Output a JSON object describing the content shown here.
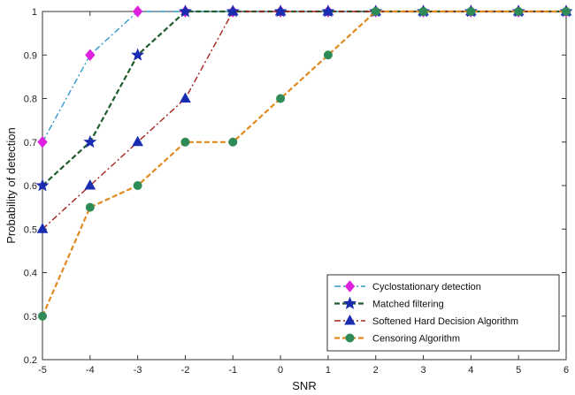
{
  "chart_data": {
    "type": "line",
    "xlabel": "SNR",
    "ylabel": "Probability of detection",
    "xlim": [
      -5,
      6
    ],
    "ylim": [
      0.2,
      1.0
    ],
    "x_ticks": [
      "-5",
      "-4",
      "-3",
      "-2",
      "-1",
      "0",
      "1",
      "2",
      "3",
      "4",
      "5",
      "6"
    ],
    "y_ticks": [
      "0.2",
      "0.3",
      "0.4",
      "0.5",
      "0.6",
      "0.7",
      "0.8",
      "0.9",
      "1"
    ],
    "grid": false,
    "legend_position": "bottom-right",
    "series": [
      {
        "name": "Cyclostationary detection",
        "color": "#3399cc",
        "marker": "diamond",
        "marker_color": "#dd22dd",
        "line_style": "dashdot",
        "x": [
          -5,
          -4,
          -3,
          -2,
          -1,
          0,
          1,
          2,
          3,
          4,
          5,
          6
        ],
        "y": [
          0.7,
          0.9,
          1.0,
          1.0,
          1.0,
          1.0,
          1.0,
          1.0,
          1.0,
          1.0,
          1.0,
          1.0
        ]
      },
      {
        "name": "Matched filtering",
        "color": "#1f5c2e",
        "marker": "star",
        "marker_color": "#1a2db0",
        "line_style": "dashed",
        "x": [
          -5,
          -4,
          -3,
          -2,
          -1,
          0,
          1,
          2,
          3,
          4,
          5,
          6
        ],
        "y": [
          0.6,
          0.7,
          0.9,
          1.0,
          1.0,
          1.0,
          1.0,
          1.0,
          1.0,
          1.0,
          1.0,
          1.0
        ]
      },
      {
        "name": "Softened Hard Decision Algorithm",
        "color": "#a52020",
        "marker": "triangle",
        "marker_color": "#1a2db0",
        "line_style": "dashdot",
        "x": [
          -5,
          -4,
          -3,
          -2,
          -1,
          0,
          1,
          2,
          3,
          4,
          5,
          6
        ],
        "y": [
          0.5,
          0.6,
          0.7,
          0.8,
          1.0,
          1.0,
          1.0,
          1.0,
          1.0,
          1.0,
          1.0,
          1.0
        ]
      },
      {
        "name": "Censoring Algorithm",
        "color": "#e08a1e",
        "marker": "circle",
        "marker_color": "#2e8b57",
        "line_style": "dashed",
        "x": [
          -5,
          -4,
          -3,
          -2,
          -1,
          0,
          1,
          2,
          3,
          4,
          5,
          6
        ],
        "y": [
          0.3,
          0.55,
          0.6,
          0.7,
          0.7,
          0.8,
          0.9,
          1.0,
          1.0,
          1.0,
          1.0,
          1.0
        ]
      }
    ]
  }
}
